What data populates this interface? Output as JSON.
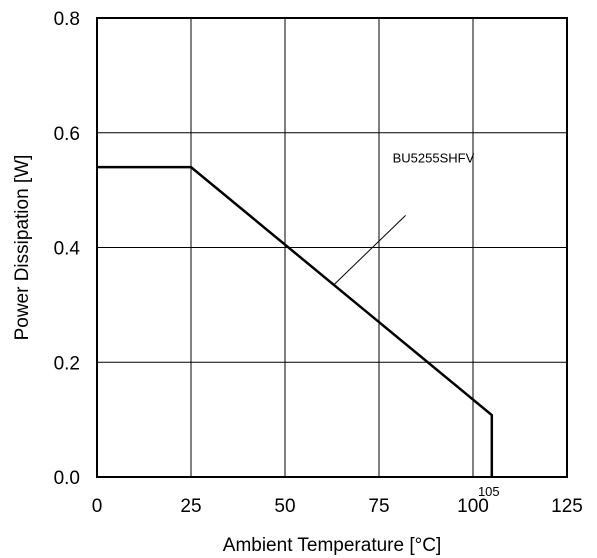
{
  "chart_data": {
    "type": "line",
    "xlabel": "Ambient Temperature [°C]",
    "ylabel": "Power Dissipation [W]",
    "xlim": [
      0,
      125
    ],
    "ylim": [
      0,
      0.8
    ],
    "x_ticks": [
      0,
      25,
      50,
      75,
      100,
      125
    ],
    "x_tick_labels": [
      "0",
      "25",
      "50",
      "75",
      "100",
      "125"
    ],
    "y_ticks": [
      0.0,
      0.2,
      0.4,
      0.6,
      0.8
    ],
    "y_tick_labels": [
      "0.0",
      "0.2",
      "0.4",
      "0.6",
      "0.8"
    ],
    "grid": true,
    "series": [
      {
        "name": "BU5255SHFV",
        "x": [
          0,
          25,
          105,
          105
        ],
        "y": [
          0.54,
          0.54,
          0.108,
          0
        ]
      }
    ],
    "annotations": [
      {
        "text": "105",
        "x": 105,
        "y": 0
      },
      {
        "text": "BU5255SHFV",
        "x": 85,
        "y": 0.47,
        "pointer_to": {
          "x": 63,
          "y": 0.335
        }
      }
    ],
    "line_color": "#000000",
    "grid_color": "#000000"
  }
}
